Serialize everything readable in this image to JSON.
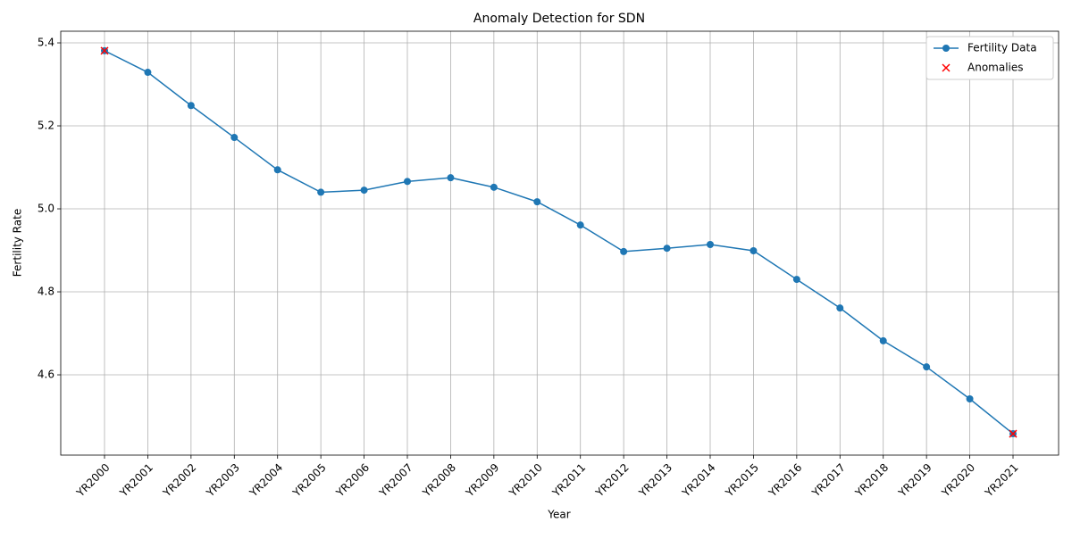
{
  "chart_data": {
    "type": "line",
    "title": "Anomaly Detection for SDN",
    "xlabel": "Year",
    "ylabel": "Fertility Rate",
    "categories": [
      "YR2000",
      "YR2001",
      "YR2002",
      "YR2003",
      "YR2004",
      "YR2005",
      "YR2006",
      "YR2007",
      "YR2008",
      "YR2009",
      "YR2010",
      "YR2011",
      "YR2012",
      "YR2013",
      "YR2014",
      "YR2015",
      "YR2016",
      "YR2017",
      "YR2018",
      "YR2019",
      "YR2020",
      "YR2021"
    ],
    "series": [
      {
        "name": "Fertility Data",
        "color": "#1f77b4",
        "marker": "o",
        "values": [
          5.381,
          5.329,
          5.249,
          5.172,
          5.094,
          5.04,
          5.045,
          5.066,
          5.075,
          5.052,
          5.017,
          4.961,
          4.897,
          4.905,
          4.914,
          4.899,
          4.83,
          4.761,
          4.682,
          4.619,
          4.542,
          4.458
        ]
      },
      {
        "name": "Anomalies",
        "color": "#ff0000",
        "marker": "x",
        "values": [
          5.381,
          null,
          null,
          null,
          null,
          null,
          null,
          null,
          null,
          null,
          null,
          null,
          null,
          null,
          null,
          null,
          null,
          null,
          null,
          null,
          null,
          4.458
        ]
      }
    ],
    "ylim": [
      4.4065,
      5.428
    ],
    "yticks": [
      {
        "value": 4.6,
        "label": "4.6"
      },
      {
        "value": 4.8,
        "label": "4.8"
      },
      {
        "value": 5.0,
        "label": "5.0"
      },
      {
        "value": 5.2,
        "label": "5.2"
      },
      {
        "value": 5.4,
        "label": "5.4"
      }
    ],
    "grid": true,
    "legend": "upper right"
  }
}
